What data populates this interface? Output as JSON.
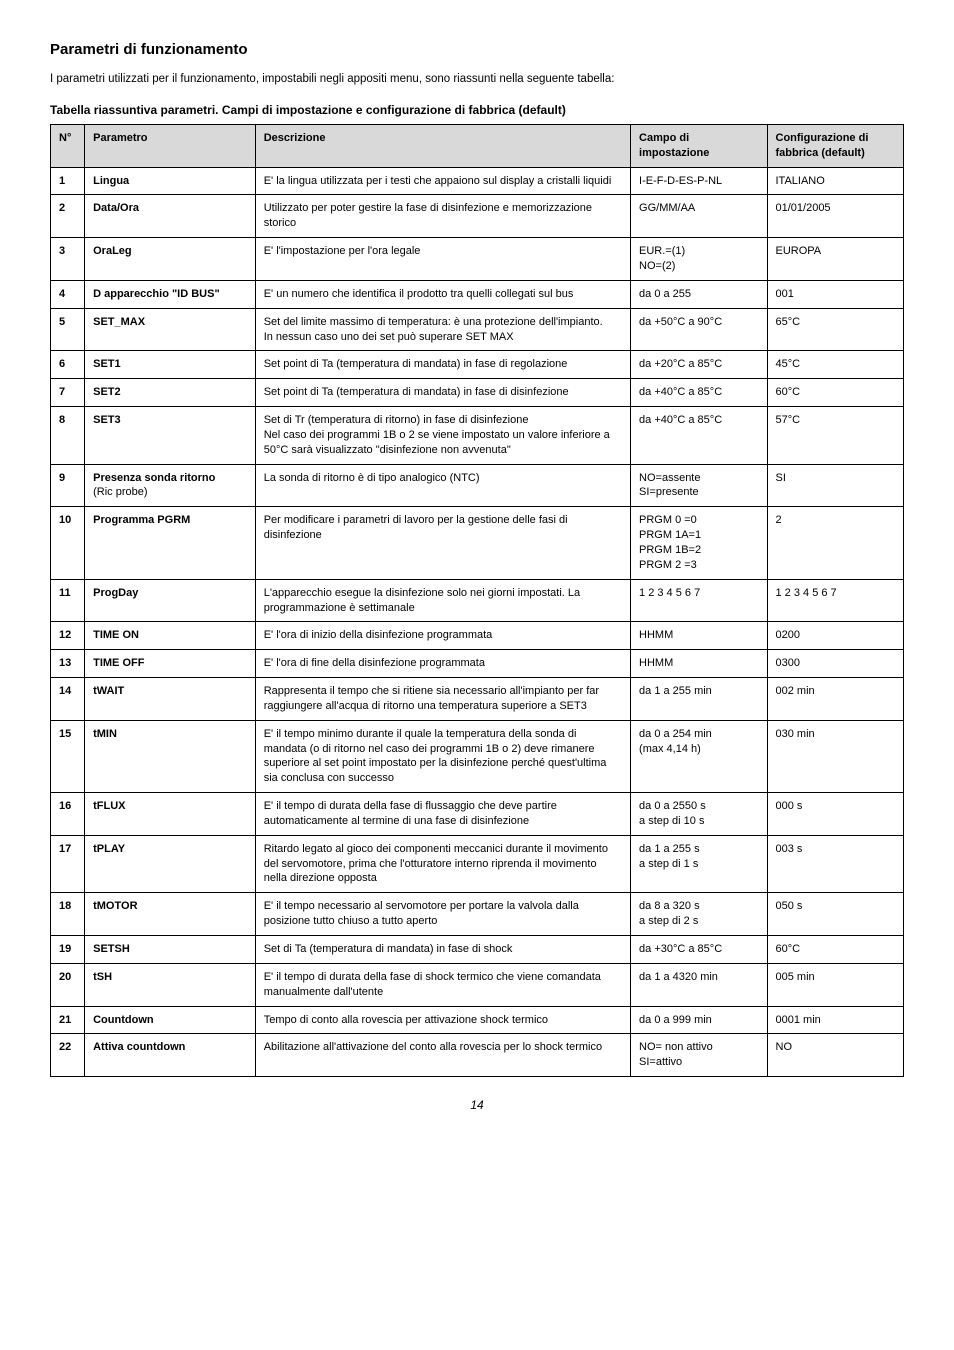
{
  "section_title": "Parametri di funzionamento",
  "intro": "I parametri utilizzati per il funzionamento, impostabili negli appositi menu, sono riassunti nella seguente tabella:",
  "table_title": "Tabella riassuntiva parametri. Campi di impostazione e configurazione di fabbrica (default)",
  "page_number": "14",
  "headers": {
    "n": "N°",
    "parametro": "Parametro",
    "descrizione": "Descrizione",
    "campo": "Campo di impostazione",
    "conf": "Configurazione di fabbrica (default)"
  },
  "rows": [
    {
      "n": "1",
      "param": "Lingua",
      "descr": "E' la lingua utilizzata per i testi che appaiono sul display a cristalli liquidi",
      "campo": "I-E-F-D-ES-P-NL",
      "conf": "ITALIANO"
    },
    {
      "n": "2",
      "param": "Data/Ora",
      "descr": "Utilizzato per poter gestire la fase di disinfezione e memorizzazione storico",
      "campo": "GG/MM/AA",
      "conf": "01/01/2005"
    },
    {
      "n": "3",
      "param": "OraLeg",
      "descr": "E' l'impostazione per l'ora legale",
      "campo": "EUR.=(1)\nNO=(2)",
      "conf": "EUROPA"
    },
    {
      "n": "4",
      "param": "D apparecchio \"ID BUS\"",
      "descr": "E' un numero che identifica il prodotto tra quelli collegati sul bus",
      "campo": "da 0 a 255",
      "conf": "001"
    },
    {
      "n": "5",
      "param": "SET_MAX",
      "descr": "Set del limite massimo di temperatura: è una protezione dell'impianto.\nIn nessun caso uno dei set può superare SET MAX",
      "campo": "da +50°C a 90°C",
      "conf": "65°C"
    },
    {
      "n": "6",
      "param": "SET1",
      "descr": "Set point di Ta (temperatura di mandata) in fase di regolazione",
      "campo": "da +20°C a 85°C",
      "conf": "45°C"
    },
    {
      "n": "7",
      "param": "SET2",
      "descr": "Set point di Ta (temperatura di mandata) in fase di disinfezione",
      "campo": "da +40°C a 85°C",
      "conf": "60°C"
    },
    {
      "n": "8",
      "param": "SET3",
      "descr": "Set di Tr (temperatura di ritorno) in fase di disinfezione\nNel caso dei programmi 1B o 2 se viene impostato un valore inferiore a 50°C sarà visualizzato \"disinfezione non avvenuta\"",
      "campo": "da +40°C a 85°C",
      "conf": "57°C"
    },
    {
      "n": "9",
      "param": "Presenza sonda ritorno\n(Ric probe)",
      "descr": "La sonda di ritorno è di tipo analogico (NTC)",
      "campo": "NO=assente\nSI=presente",
      "conf": "SI"
    },
    {
      "n": "10",
      "param": "Programma PGRM",
      "descr": "Per modificare i parametri di lavoro per la gestione delle fasi di disinfezione",
      "campo": "PRGM 0 =0\nPRGM 1A=1\nPRGM 1B=2\nPRGM 2 =3",
      "conf": "2"
    },
    {
      "n": "11",
      "param": "ProgDay",
      "descr": "L'apparecchio esegue la disinfezione solo nei giorni impostati. La programmazione è settimanale",
      "campo": "1 2 3 4 5 6 7",
      "conf": "1 2 3 4 5 6 7"
    },
    {
      "n": "12",
      "param": "TIME ON",
      "descr": "E' l'ora di inizio della disinfezione programmata",
      "campo": "HHMM",
      "conf": "0200"
    },
    {
      "n": "13",
      "param": "TIME OFF",
      "descr": "E' l'ora di fine della disinfezione programmata",
      "campo": "HHMM",
      "conf": "0300"
    },
    {
      "n": "14",
      "param": "tWAIT",
      "descr": "Rappresenta il tempo che si ritiene sia necessario all'impianto per far raggiungere all'acqua di ritorno una temperatura superiore a SET3",
      "campo": "da 1 a 255 min",
      "conf": "002 min"
    },
    {
      "n": "15",
      "param": "tMIN",
      "descr": "E' il tempo minimo durante il quale la temperatura della sonda di mandata (o di ritorno nel caso dei programmi 1B o 2) deve rimanere superiore al set point impostato per la disinfezione perché quest'ultima sia conclusa con successo",
      "campo": "da 0 a 254 min\n(max 4,14 h)",
      "conf": "030 min"
    },
    {
      "n": "16",
      "param": "tFLUX",
      "descr": "E' il tempo di durata della fase di flussaggio che deve partire automaticamente al termine di una fase di disinfezione",
      "campo": "da 0 a 2550 s\na step di 10 s",
      "conf": "000 s"
    },
    {
      "n": "17",
      "param": "tPLAY",
      "descr": "Ritardo legato al gioco dei componenti meccanici durante il movimento del servomotore, prima che l'otturatore interno riprenda il movimento nella direzione opposta",
      "campo": "da 1 a 255 s\na step di 1 s",
      "conf": "003 s"
    },
    {
      "n": "18",
      "param": "tMOTOR",
      "descr": "E' il tempo necessario al servomotore per portare la valvola dalla posizione tutto chiuso a tutto aperto",
      "campo": "da 8 a 320 s\na step di 2 s",
      "conf": "050 s"
    },
    {
      "n": "19",
      "param": "SETSH",
      "descr": "Set di Ta (temperatura di mandata) in fase di shock",
      "campo": "da +30°C a 85°C",
      "conf": "60°C"
    },
    {
      "n": "20",
      "param": "tSH",
      "descr": "E' il tempo di durata della fase di shock termico che viene comandata manualmente dall'utente",
      "campo": "da 1 a 4320 min",
      "conf": "005 min"
    },
    {
      "n": "21",
      "param": "Countdown",
      "descr": "Tempo di conto alla rovescia per attivazione shock termico",
      "campo": "da 0 a 999 min",
      "conf": "0001 min"
    },
    {
      "n": "22",
      "param": "Attiva countdown",
      "descr": "Abilitazione all'attivazione del conto alla rovescia per lo shock termico",
      "campo": "NO= non attivo\nSI=attivo",
      "conf": "NO"
    }
  ]
}
